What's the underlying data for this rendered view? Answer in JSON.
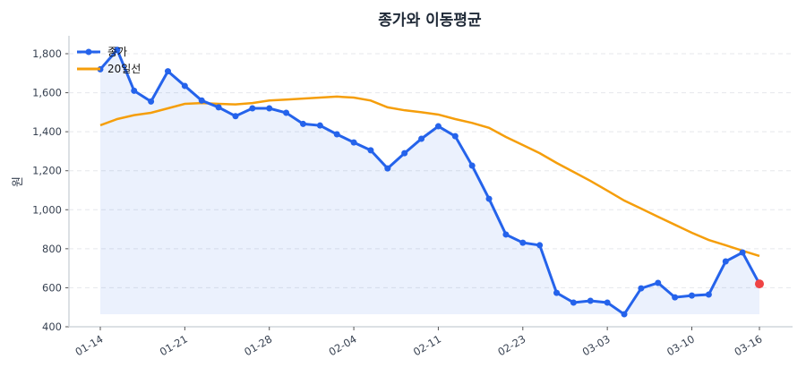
{
  "chart_data": {
    "type": "line",
    "title": "종가와 이동평균",
    "xlabel": "",
    "ylabel": "원",
    "ylim": [
      400,
      1880
    ],
    "yticks": [
      400,
      600,
      800,
      1000,
      1200,
      1400,
      1600,
      1800
    ],
    "ytick_labels": [
      "400",
      "600",
      "800",
      "1,000",
      "1,200",
      "1,400",
      "1,600",
      "1,800"
    ],
    "x_tick_labels": [
      "01-14",
      "01-21",
      "01-28",
      "02-04",
      "02-11",
      "02-23",
      "03-03",
      "03-10",
      "03-16"
    ],
    "x_tick_positions": [
      0,
      5,
      10,
      15,
      20,
      25,
      30,
      35,
      39
    ],
    "grid": "horizontal dashed",
    "legend": "top-left",
    "series": [
      {
        "name": "종가",
        "color": "#2563eb",
        "markers": true,
        "fill": true,
        "values": [
          1720,
          1820,
          1610,
          1555,
          1710,
          1635,
          1560,
          1525,
          1480,
          1520,
          1520,
          1497,
          1440,
          1432,
          1387,
          1345,
          1305,
          1212,
          1290,
          1364,
          1428,
          1377,
          1226,
          1056,
          873,
          831,
          818,
          574,
          524,
          533,
          524,
          464,
          597,
          625,
          551,
          560,
          565,
          735,
          781,
          620
        ]
      },
      {
        "name": "20일선",
        "color": "#f59e0b",
        "markers": false,
        "values": [
          1433,
          1465,
          1485,
          1497,
          1520,
          1543,
          1547,
          1543,
          1540,
          1547,
          1560,
          1565,
          1570,
          1575,
          1580,
          1575,
          1560,
          1525,
          1510,
          1500,
          1488,
          1465,
          1445,
          1420,
          1373,
          1332,
          1290,
          1240,
          1194,
          1148,
          1098,
          1047,
          1006,
          964,
          923,
          882,
          845,
          818,
          790,
          763
        ]
      }
    ],
    "last_point_color": "#ef4444"
  }
}
